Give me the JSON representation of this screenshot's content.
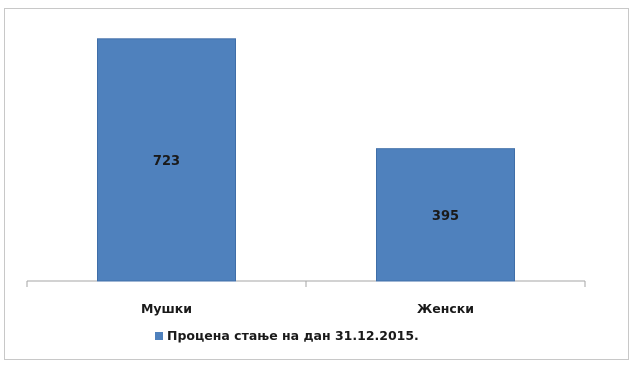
{
  "chart_data": {
    "type": "bar",
    "categories": [
      "Мушки",
      "Женски"
    ],
    "series": [
      {
        "name": "Процена стање на дан 31.12.2015.",
        "values": [
          723,
          395
        ],
        "color": "#4f81bd"
      }
    ],
    "ylim": [
      0,
      800
    ],
    "grid": false,
    "legend_position": "bottom"
  }
}
